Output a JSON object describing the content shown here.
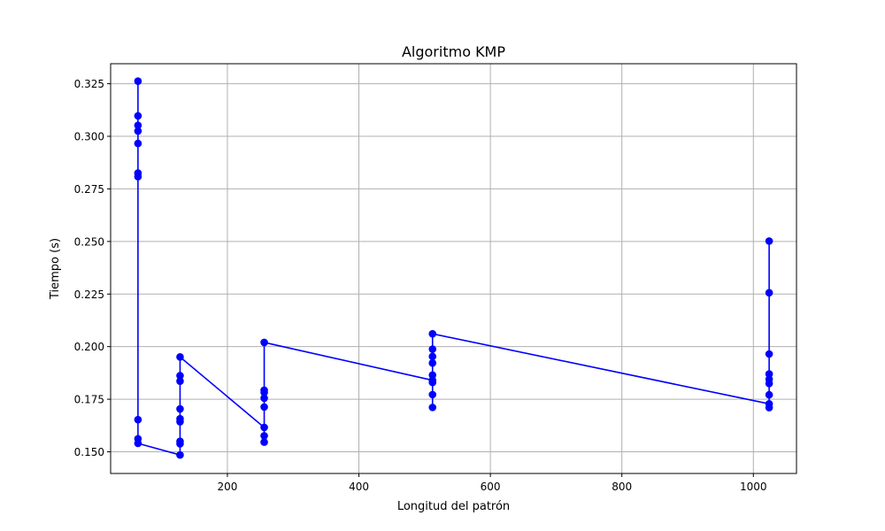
{
  "chart_data": {
    "type": "line",
    "title": "Algoritmo KMP",
    "xlabel": "Longitud del patrón",
    "ylabel": "Tiempo (s)",
    "xlim": [
      22.4,
      1065.6
    ],
    "ylim": [
      0.1397,
      0.3345
    ],
    "xticks": [
      200,
      400,
      600,
      800,
      1000
    ],
    "xtick_labels": [
      "200",
      "400",
      "600",
      "800",
      "1000"
    ],
    "yticks": [
      0.15,
      0.175,
      0.2,
      0.225,
      0.25,
      0.275,
      0.3,
      0.325
    ],
    "ytick_labels": [
      "0.150",
      "0.175",
      "0.200",
      "0.225",
      "0.250",
      "0.275",
      "0.300",
      "0.325"
    ],
    "grid": true,
    "series": [
      {
        "color": "#0000ff",
        "marker": "circle",
        "points": [
          [
            64,
            0.3262
          ],
          [
            64,
            0.3097
          ],
          [
            64,
            0.3052
          ],
          [
            64,
            0.3025
          ],
          [
            64,
            0.2966
          ],
          [
            64,
            0.2825
          ],
          [
            64,
            0.2808
          ],
          [
            64,
            0.1653
          ],
          [
            64,
            0.1562
          ],
          [
            64,
            0.154
          ],
          [
            128,
            0.1485
          ],
          [
            128,
            0.1538
          ],
          [
            128,
            0.155
          ],
          [
            128,
            0.1643
          ],
          [
            128,
            0.1657
          ],
          [
            128,
            0.1704
          ],
          [
            128,
            0.1836
          ],
          [
            128,
            0.1862
          ],
          [
            128,
            0.1951
          ],
          [
            256,
            0.1616
          ],
          [
            256,
            0.1576
          ],
          [
            256,
            0.1546
          ],
          [
            256,
            0.1713
          ],
          [
            256,
            0.1755
          ],
          [
            256,
            0.1782
          ],
          [
            256,
            0.1793
          ],
          [
            256,
            0.202
          ],
          [
            512,
            0.184
          ],
          [
            512,
            0.1711
          ],
          [
            512,
            0.1772
          ],
          [
            512,
            0.183
          ],
          [
            512,
            0.1865
          ],
          [
            512,
            0.1922
          ],
          [
            512,
            0.1953
          ],
          [
            512,
            0.1988
          ],
          [
            512,
            0.2061
          ],
          [
            1024,
            0.1728
          ],
          [
            1024,
            0.171
          ],
          [
            1024,
            0.1771
          ],
          [
            1024,
            0.1825
          ],
          [
            1024,
            0.1845
          ],
          [
            1024,
            0.187
          ],
          [
            1024,
            0.1965
          ],
          [
            1024,
            0.2256
          ],
          [
            1024,
            0.2502
          ]
        ]
      }
    ]
  }
}
